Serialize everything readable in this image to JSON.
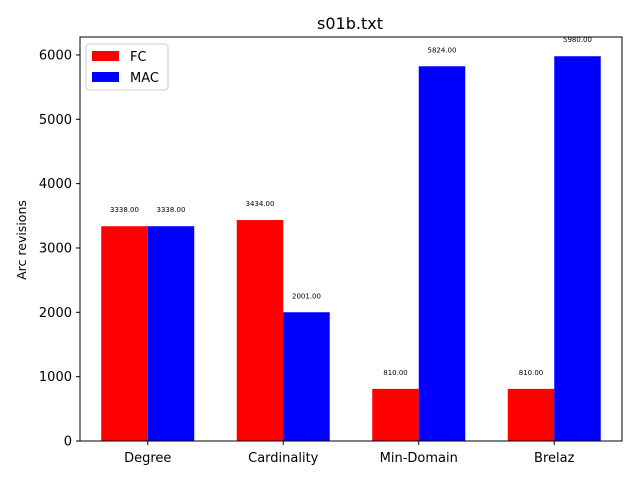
{
  "chart_data": {
    "type": "bar",
    "title": "s01b.txt",
    "xlabel": "",
    "ylabel": "Arc revisions",
    "categories": [
      "Degree",
      "Cardinality",
      "Min-Domain",
      "Brelaz"
    ],
    "series": [
      {
        "name": "FC",
        "color": "#ff0000",
        "values": [
          3338,
          3434,
          810,
          810
        ],
        "labels": [
          "3338.00",
          "3434.00",
          "810.00",
          "810.00"
        ]
      },
      {
        "name": "MAC",
        "color": "#0000ff",
        "values": [
          3338,
          2001,
          5824,
          5980
        ],
        "labels": [
          "3338.00",
          "2001.00",
          "5824.00",
          "5980.00"
        ]
      }
    ],
    "ylim": [
      0,
      6279
    ],
    "yticks": [
      0,
      1000,
      2000,
      3000,
      4000,
      5000,
      6000
    ],
    "ytick_labels": [
      "0",
      "1000",
      "2000",
      "3000",
      "4000",
      "5000",
      "6000"
    ],
    "legend": "upper-left",
    "grid": false
  }
}
